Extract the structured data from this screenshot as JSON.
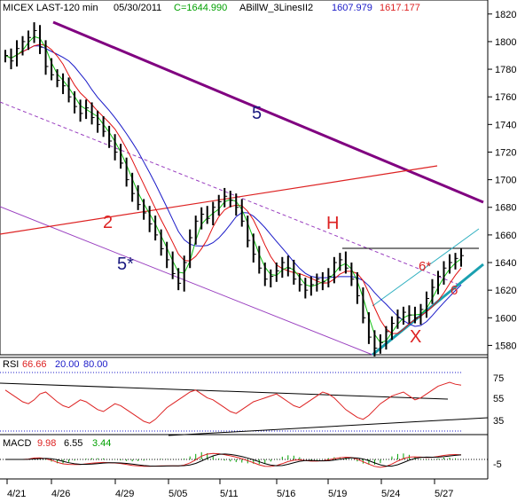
{
  "chart_data": {
    "type": "candlestick",
    "header": {
      "symbol": "MICEX LAST-120 min",
      "date": "05/30/2011",
      "close_label": "C=1644.990",
      "indicator_name": "ABillW_3LinesII2",
      "indicator_value_1": "1607.979",
      "indicator_value_2": "1617.177"
    },
    "colors": {
      "price": "#000000",
      "ma_fast": "#00c000",
      "ma_mid": "#e00000",
      "ma_slow": "#0000c0",
      "channel": "#800080",
      "red_line": "#dd2222",
      "teal": "#30a0b0",
      "grid": "#000080",
      "label_red": "#dd2222",
      "label_navy": "#1a1a80"
    },
    "price_axis": {
      "min": 1570,
      "max": 1825,
      "ticks": [
        1580,
        1600,
        1620,
        1640,
        1660,
        1680,
        1700,
        1720,
        1740,
        1760,
        1780,
        1800,
        1820
      ]
    },
    "x_axis_labels": [
      "4/21",
      "4/26",
      "4/29",
      "5/05",
      "5/11",
      "5/16",
      "5/19",
      "5/24",
      "5/27"
    ],
    "price_series": [
      1790,
      1786,
      1795,
      1800,
      1803,
      1808,
      1796,
      1782,
      1776,
      1772,
      1768,
      1760,
      1753,
      1748,
      1752,
      1745,
      1740,
      1735,
      1728,
      1720,
      1712,
      1700,
      1690,
      1682,
      1676,
      1668,
      1660,
      1650,
      1642,
      1632,
      1625,
      1640,
      1658,
      1670,
      1675,
      1672,
      1680,
      1684,
      1688,
      1685,
      1680,
      1670,
      1656,
      1646,
      1636,
      1628,
      1630,
      1634,
      1640,
      1636,
      1628,
      1624,
      1620,
      1624,
      1628,
      1626,
      1630,
      1640,
      1642,
      1636,
      1628,
      1616,
      1600,
      1586,
      1578,
      1582,
      1590,
      1596,
      1600,
      1604,
      1602,
      1600,
      1606,
      1614,
      1622,
      1630,
      1636,
      1640,
      1643,
      1645
    ],
    "annotations": {
      "wave_5_top": "5",
      "wave_2": "2",
      "wave_5_star": "5*",
      "wave_h": "H",
      "wave_6_star": "6*",
      "wave_6": "6",
      "wave_x": "X"
    },
    "rsi": {
      "label": "RSI",
      "value": "66.66",
      "level_low": "20.00",
      "level_high": "80.00",
      "axis_ticks": [
        "75",
        "55",
        "35"
      ],
      "series": [
        62,
        58,
        54,
        50,
        48,
        52,
        58,
        60,
        55,
        50,
        46,
        44,
        48,
        52,
        50,
        46,
        42,
        40,
        44,
        48,
        46,
        42,
        38,
        34,
        30,
        28,
        32,
        38,
        44,
        48,
        52,
        56,
        60,
        62,
        58,
        54,
        52,
        48,
        44,
        40,
        38,
        42,
        46,
        50,
        52,
        54,
        56,
        58,
        54,
        50,
        46,
        44,
        48,
        52,
        56,
        60,
        58,
        54,
        48,
        42,
        38,
        34,
        32,
        36,
        42,
        48,
        52,
        56,
        58,
        60,
        56,
        52,
        54,
        58,
        62,
        66,
        68,
        70,
        68,
        67
      ]
    },
    "macd": {
      "label": "MACD",
      "value_1": "9.98",
      "value_2": "6.55",
      "value_3": "3.44",
      "axis_tick": "-5"
    }
  }
}
